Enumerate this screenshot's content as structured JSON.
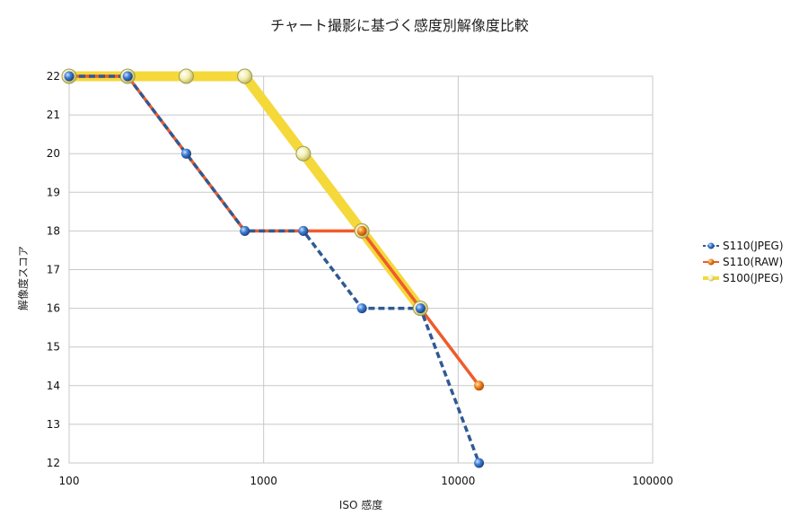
{
  "chart_data": {
    "type": "line",
    "title": "チャート撮影に基づく感度別解像度比較",
    "xlabel": "ISO 感度",
    "ylabel": "解像度スコア",
    "x_scale": "log",
    "xlim": [
      100,
      100000
    ],
    "ylim": [
      12,
      22
    ],
    "x_ticks": [
      100,
      1000,
      10000,
      100000
    ],
    "x_tick_labels": [
      "100",
      "1000",
      "10000",
      "100000"
    ],
    "y_ticks": [
      12,
      13,
      14,
      15,
      16,
      17,
      18,
      19,
      20,
      21,
      22
    ],
    "y_tick_labels": [
      "12",
      "13",
      "14",
      "15",
      "16",
      "17",
      "18",
      "19",
      "20",
      "21",
      "22"
    ],
    "grid": true,
    "legend_position": "right",
    "series": [
      {
        "name": "S100(JPEG)",
        "color": "#f5d83a",
        "style": "thick-solid",
        "x": [
          100,
          200,
          400,
          800,
          1600,
          3200,
          6400
        ],
        "y": [
          22,
          22,
          22,
          22,
          20,
          18,
          16
        ]
      },
      {
        "name": "S110(RAW)",
        "color": "#ef5b2b",
        "style": "solid",
        "x": [
          100,
          200,
          400,
          800,
          1600,
          3200,
          6400,
          12800
        ],
        "y": [
          22,
          22,
          20,
          18,
          18,
          18,
          16,
          14
        ]
      },
      {
        "name": "S110(JPEG)",
        "color": "#2f5a93",
        "style": "dashed",
        "x": [
          100,
          200,
          400,
          800,
          1600,
          3200,
          6400,
          12800
        ],
        "y": [
          22,
          22,
          20,
          18,
          18,
          16,
          16,
          12
        ]
      }
    ],
    "legend_order": [
      "S110(JPEG)",
      "S110(RAW)",
      "S100(JPEG)"
    ]
  }
}
